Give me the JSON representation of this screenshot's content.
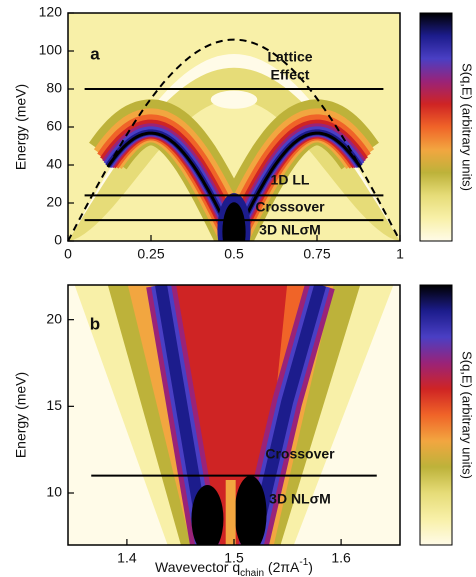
{
  "chart_data": [
    {
      "type": "contour",
      "panel": "a",
      "xlim": [
        0,
        1
      ],
      "xticks": [
        0,
        0.25,
        0.5,
        0.75,
        1
      ],
      "ylim": [
        0,
        120
      ],
      "yticks": [
        0,
        20,
        40,
        60,
        80,
        100,
        120
      ],
      "ylabel": "Energy (meV)",
      "hlines": [
        80,
        24,
        11
      ],
      "curve_peak": 106,
      "annotations": [
        "Lattice",
        "Effect",
        "1D LL",
        "Crossover",
        "3D NLσM"
      ],
      "colorbar_label": "S(q,E) (arbitrary units)",
      "colormap": [
        "#fffbe8",
        "#f8f0a8",
        "#e6dc78",
        "#bdb23a",
        "#f2a640",
        "#f06428",
        "#cf2424",
        "#9a2378",
        "#4a3fc4",
        "#1c1c8c",
        "#000000"
      ]
    },
    {
      "type": "contour",
      "panel": "b",
      "xlim": [
        1.345,
        1.655
      ],
      "xticks": [
        1.4,
        1.5,
        1.6
      ],
      "ylim": [
        7,
        22
      ],
      "yticks": [
        10,
        15,
        20
      ],
      "ylabel": "Energy (meV)",
      "xlabel": {
        "main": "Wavevector q",
        "sub": "chain",
        "unit": " (2πA",
        "sup": "-1",
        "end": ")"
      },
      "hlines": [
        11
      ],
      "annotations": [
        "Crossover",
        "3D NLσM"
      ],
      "colorbar_label": "S(q,E) (arbitrary units)",
      "colormap": [
        "#fffbe8",
        "#f8f0a8",
        "#e6dc78",
        "#bdb23a",
        "#f2a640",
        "#f06428",
        "#cf2424",
        "#9a2378",
        "#4a3fc4",
        "#1c1c8c",
        "#000000"
      ]
    }
  ]
}
